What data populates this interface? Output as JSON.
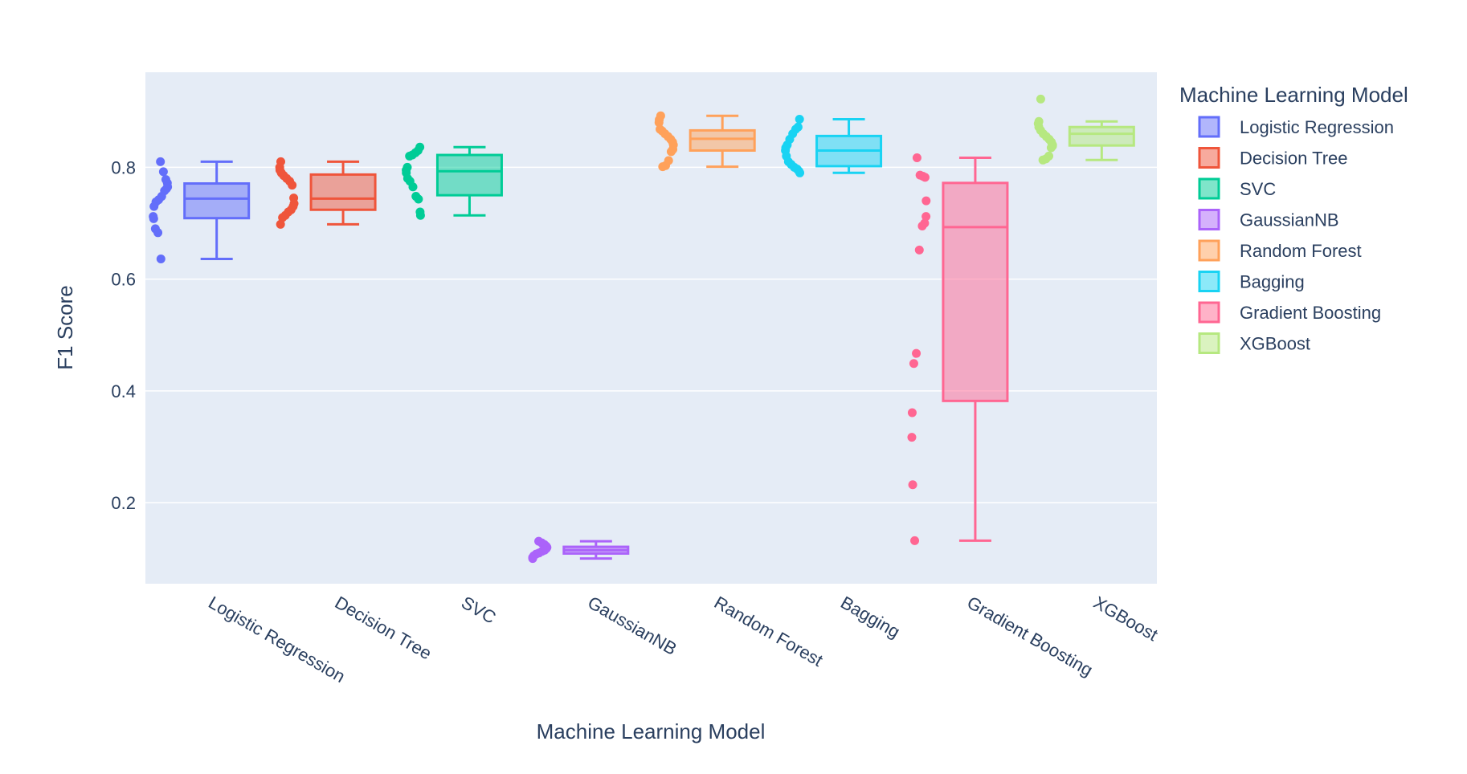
{
  "chart_data": {
    "type": "box",
    "xlabel": "Machine Learning Model",
    "ylabel": "F1 Score",
    "yticks": [
      0.2,
      0.4,
      0.6,
      0.8
    ],
    "ytick_labels": [
      "0.2",
      "0.4",
      "0.6",
      "0.8"
    ],
    "ylim": [
      0.055,
      0.97
    ],
    "grid": true,
    "legend_title": "Machine Learning Model",
    "legend_position": "right",
    "categories": [
      "Logistic Regression",
      "Decision Tree",
      "SVC",
      "GaussianNB",
      "Random Forest",
      "Bagging",
      "Gradient Boosting",
      "XGBoost"
    ],
    "series": [
      {
        "name": "Logistic Regression",
        "color": "#636efa",
        "min": 0.636,
        "q1": 0.709,
        "median": 0.744,
        "q3": 0.771,
        "max": 0.81,
        "points": [
          0.81,
          0.792,
          0.778,
          0.772,
          0.765,
          0.762,
          0.758,
          0.748,
          0.742,
          0.738,
          0.73,
          0.712,
          0.708,
          0.69,
          0.683,
          0.636
        ]
      },
      {
        "name": "Decision Tree",
        "color": "#EF553B",
        "min": 0.698,
        "q1": 0.724,
        "median": 0.744,
        "q3": 0.787,
        "max": 0.81,
        "points": [
          0.81,
          0.8,
          0.795,
          0.79,
          0.785,
          0.78,
          0.775,
          0.768,
          0.745,
          0.735,
          0.73,
          0.724,
          0.72,
          0.714,
          0.71,
          0.698
        ]
      },
      {
        "name": "SVC",
        "color": "#00cc96",
        "min": 0.714,
        "q1": 0.75,
        "median": 0.793,
        "q3": 0.822,
        "max": 0.836,
        "points": [
          0.836,
          0.83,
          0.826,
          0.822,
          0.82,
          0.8,
          0.795,
          0.79,
          0.78,
          0.775,
          0.765,
          0.748,
          0.743,
          0.72,
          0.714
        ]
      },
      {
        "name": "GaussianNB",
        "color": "#ab63fa",
        "min": 0.1,
        "q1": 0.109,
        "median": 0.115,
        "q3": 0.121,
        "max": 0.131,
        "points": [
          0.131,
          0.128,
          0.125,
          0.122,
          0.12,
          0.118,
          0.115,
          0.113,
          0.11,
          0.108,
          0.105,
          0.102,
          0.1
        ]
      },
      {
        "name": "Random Forest",
        "color": "#FFA15A",
        "min": 0.801,
        "q1": 0.83,
        "median": 0.851,
        "q3": 0.866,
        "max": 0.892,
        "points": [
          0.892,
          0.885,
          0.88,
          0.868,
          0.865,
          0.86,
          0.855,
          0.85,
          0.845,
          0.84,
          0.832,
          0.828,
          0.812,
          0.803,
          0.801
        ]
      },
      {
        "name": "Bagging",
        "color": "#19d3f3",
        "min": 0.79,
        "q1": 0.802,
        "median": 0.83,
        "q3": 0.856,
        "max": 0.886,
        "points": [
          0.886,
          0.872,
          0.868,
          0.86,
          0.85,
          0.84,
          0.835,
          0.83,
          0.82,
          0.81,
          0.805,
          0.8,
          0.797,
          0.793,
          0.79
        ]
      },
      {
        "name": "Gradient Boosting",
        "color": "#FF6692",
        "min": 0.132,
        "q1": 0.382,
        "median": 0.693,
        "q3": 0.772,
        "max": 0.817,
        "points": [
          0.817,
          0.786,
          0.784,
          0.782,
          0.74,
          0.712,
          0.7,
          0.695,
          0.652,
          0.467,
          0.449,
          0.361,
          0.317,
          0.232,
          0.132
        ]
      },
      {
        "name": "XGBoost",
        "color": "#B6E880",
        "min": 0.813,
        "q1": 0.839,
        "median": 0.86,
        "q3": 0.872,
        "max": 0.882,
        "points": [
          0.922,
          0.882,
          0.878,
          0.872,
          0.866,
          0.86,
          0.855,
          0.85,
          0.845,
          0.84,
          0.838,
          0.835,
          0.82,
          0.815,
          0.813
        ]
      }
    ]
  }
}
